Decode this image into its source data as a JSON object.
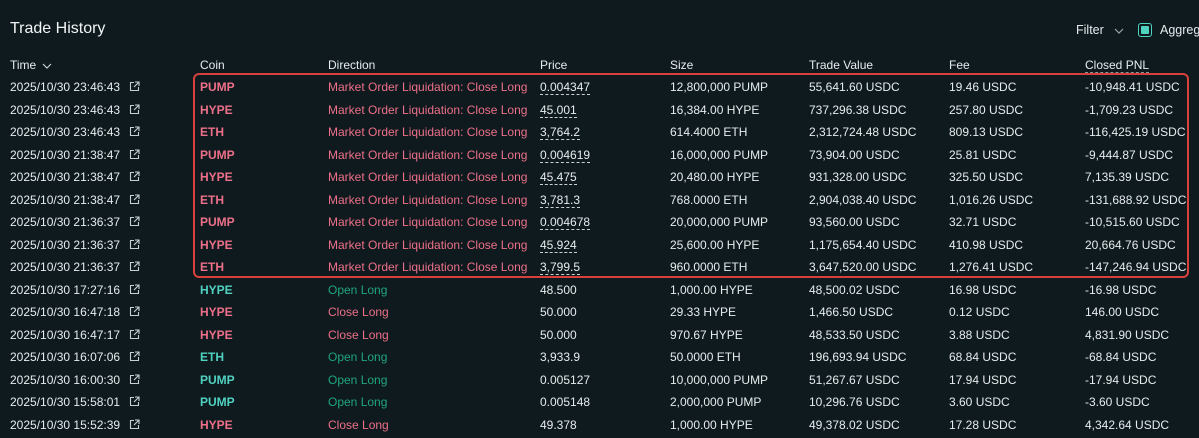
{
  "header": {
    "title": "Trade History",
    "filter": "Filter",
    "aggregate": "Aggreg"
  },
  "table": {
    "columns": [
      "Time",
      "Coin",
      "Direction",
      "Price",
      "Size",
      "Trade Value",
      "Fee",
      "Closed PNL"
    ],
    "rows": [
      [
        "2025/10/30 23:46:43",
        "PUMP",
        "Market Order Liquidation: Close Long",
        "0.004347",
        "12,800,000 PUMP",
        "55,641.60 USDC",
        "19.46 USDC",
        "-10,948.41 USDC"
      ],
      [
        "2025/10/30 23:46:43",
        "HYPE",
        "Market Order Liquidation: Close Long",
        "45.001",
        "16,384.00 HYPE",
        "737,296.38 USDC",
        "257.80 USDC",
        "-1,709.23 USDC"
      ],
      [
        "2025/10/30 23:46:43",
        "ETH",
        "Market Order Liquidation: Close Long",
        "3,764.2",
        "614.4000 ETH",
        "2,312,724.48 USDC",
        "809.13 USDC",
        "-116,425.19 USDC"
      ],
      [
        "2025/10/30 21:38:47",
        "PUMP",
        "Market Order Liquidation: Close Long",
        "0.004619",
        "16,000,000 PUMP",
        "73,904.00 USDC",
        "25.81 USDC",
        "-9,444.87 USDC"
      ],
      [
        "2025/10/30 21:38:47",
        "HYPE",
        "Market Order Liquidation: Close Long",
        "45.475",
        "20,480.00 HYPE",
        "931,328.00 USDC",
        "325.50 USDC",
        "7,135.39 USDC"
      ],
      [
        "2025/10/30 21:38:47",
        "ETH",
        "Market Order Liquidation: Close Long",
        "3,781.3",
        "768.0000 ETH",
        "2,904,038.40 USDC",
        "1,016.26 USDC",
        "-131,688.92 USDC"
      ],
      [
        "2025/10/30 21:36:37",
        "PUMP",
        "Market Order Liquidation: Close Long",
        "0.004678",
        "20,000,000 PUMP",
        "93,560.00 USDC",
        "32.71 USDC",
        "-10,515.60 USDC"
      ],
      [
        "2025/10/30 21:36:37",
        "HYPE",
        "Market Order Liquidation: Close Long",
        "45.924",
        "25,600.00 HYPE",
        "1,175,654.40 USDC",
        "410.98 USDC",
        "20,664.76 USDC"
      ],
      [
        "2025/10/30 21:36:37",
        "ETH",
        "Market Order Liquidation: Close Long",
        "3,799.5",
        "960.0000 ETH",
        "3,647,520.00 USDC",
        "1,276.41 USDC",
        "-147,246.94 USDC"
      ],
      [
        "2025/10/30 17:27:16",
        "HYPE",
        "Open Long",
        "48.500",
        "1,000.00 HYPE",
        "48,500.02 USDC",
        "16.98 USDC",
        "-16.98 USDC"
      ],
      [
        "2025/10/30 16:47:18",
        "HYPE",
        "Close Long",
        "50.000",
        "29.33 HYPE",
        "1,466.50 USDC",
        "0.12 USDC",
        "146.00 USDC"
      ],
      [
        "2025/10/30 16:47:17",
        "HYPE",
        "Close Long",
        "50.000",
        "970.67 HYPE",
        "48,533.50 USDC",
        "3.88 USDC",
        "4,831.90 USDC"
      ],
      [
        "2025/10/30 16:07:06",
        "ETH",
        "Open Long",
        "3,933.9",
        "50.0000 ETH",
        "196,693.94 USDC",
        "68.84 USDC",
        "-68.84 USDC"
      ],
      [
        "2025/10/30 16:00:30",
        "PUMP",
        "Open Long",
        "0.005127",
        "10,000,000 PUMP",
        "51,267.67 USDC",
        "17.94 USDC",
        "-17.94 USDC"
      ],
      [
        "2025/10/30 15:58:01",
        "PUMP",
        "Open Long",
        "0.005148",
        "2,000,000 PUMP",
        "10,296.76 USDC",
        "3.60 USDC",
        "-3.60 USDC"
      ],
      [
        "2025/10/30 15:52:39",
        "HYPE",
        "Close Long",
        "49.378",
        "1,000.00 HYPE",
        "49,378.02 USDC",
        "17.28 USDC",
        "4,342.64 USDC"
      ]
    ]
  }
}
